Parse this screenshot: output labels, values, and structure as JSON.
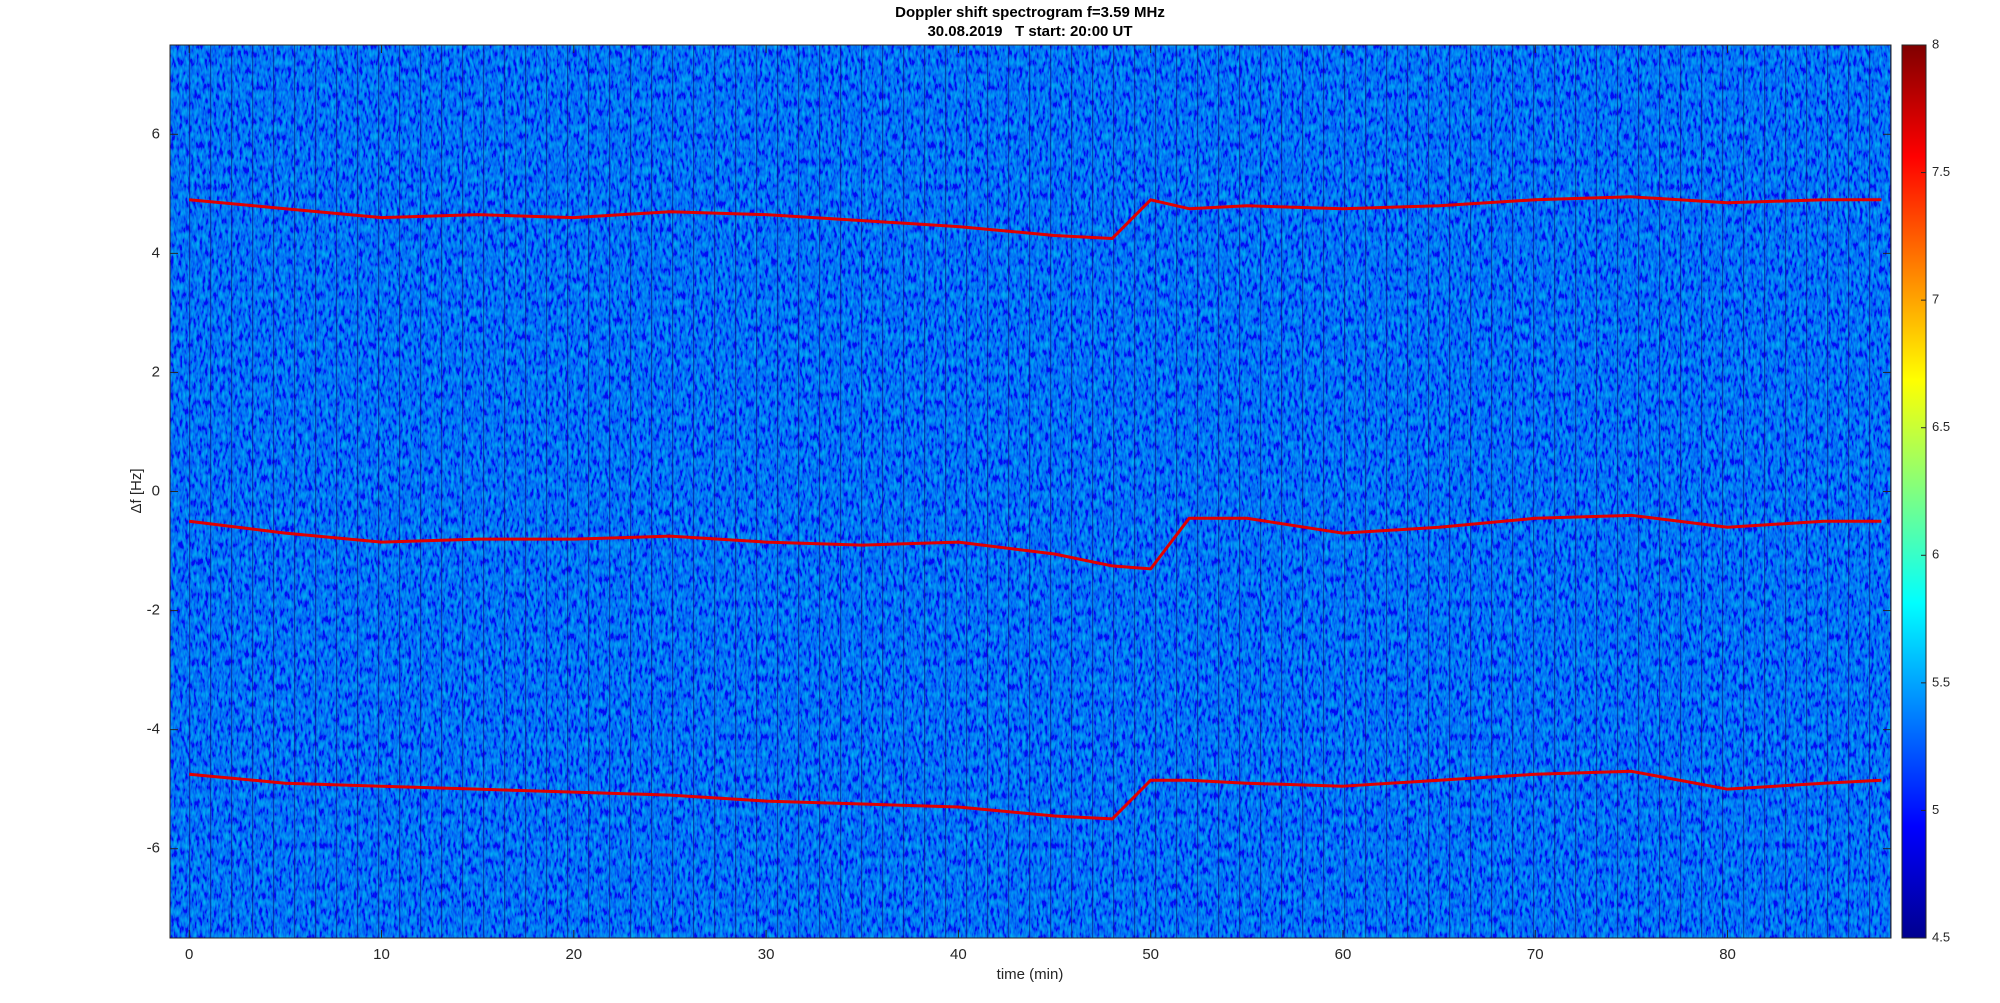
{
  "chart_data": {
    "type": "spectrogram",
    "title": "Doppler shift spectrogram f=3.59 MHz",
    "subtitle": "30.08.2019   T start: 20:00 UT",
    "x_label": "time (min)",
    "y_label": "Δf [Hz]",
    "x": [
      0,
      5,
      10,
      15,
      20,
      25,
      30,
      35,
      40,
      45,
      48,
      50,
      52,
      55,
      60,
      65,
      70,
      75,
      80,
      85,
      88
    ],
    "series": [
      {
        "color": "#e00000",
        "values": [
          4.9,
          4.75,
          4.6,
          4.65,
          4.6,
          4.7,
          4.65,
          4.55,
          4.45,
          4.3,
          4.25,
          4.9,
          4.75,
          4.8,
          4.75,
          4.8,
          4.9,
          4.95,
          4.85,
          4.9,
          4.9
        ]
      },
      {
        "color": "#e00000",
        "values": [
          -0.5,
          -0.7,
          -0.85,
          -0.8,
          -0.8,
          -0.75,
          -0.85,
          -0.9,
          -0.85,
          -1.05,
          -1.25,
          -1.3,
          -0.45,
          -0.45,
          -0.7,
          -0.6,
          -0.45,
          -0.4,
          -0.6,
          -0.5,
          -0.5
        ]
      },
      {
        "color": "#e00000",
        "values": [
          -4.75,
          -4.9,
          -4.95,
          -5.0,
          -5.05,
          -5.1,
          -5.2,
          -5.25,
          -5.3,
          -5.45,
          -5.5,
          -4.85,
          -4.85,
          -4.9,
          -4.95,
          -4.85,
          -4.75,
          -4.7,
          -5.0,
          -4.9,
          -4.85
        ]
      }
    ],
    "xlim": [
      -1,
      88.5
    ],
    "xticks": [
      0,
      10,
      20,
      30,
      40,
      50,
      60,
      70,
      80
    ],
    "ylim": [
      -7.5,
      7.5
    ],
    "yticks": [
      -6,
      -4,
      -2,
      0,
      2,
      4,
      6
    ],
    "clim": [
      4.5,
      8
    ],
    "cticks": [
      4.5,
      5,
      5.5,
      6,
      6.5,
      7,
      7.5,
      8
    ],
    "colormap": [
      "#00008f",
      "#0000ff",
      "#0080ff",
      "#00ffff",
      "#80ff80",
      "#ffff00",
      "#ff8000",
      "#ff0000",
      "#800000"
    ]
  }
}
